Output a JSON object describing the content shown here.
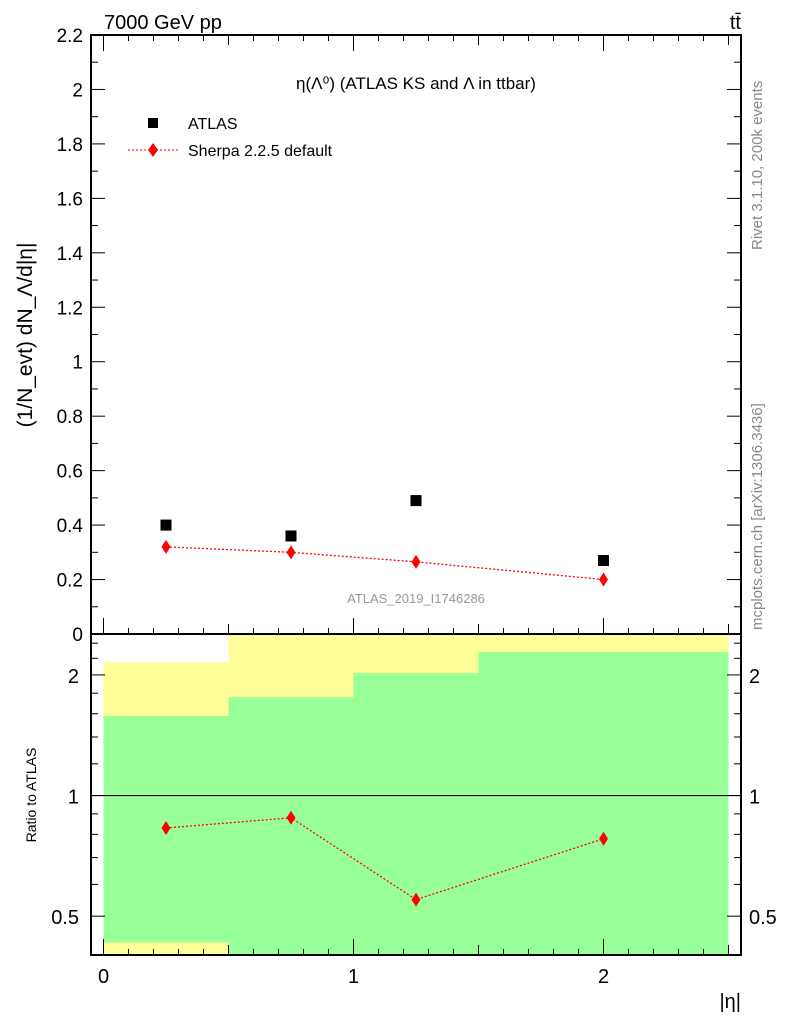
{
  "header": {
    "left": "7000 GeV pp",
    "right": "tt̄"
  },
  "side_labels": {
    "rivet": "Rivet 3.1.10,  200k events",
    "mcplots": "mcplots.cern.ch [arXiv:1306.3436]"
  },
  "chart_data": [
    {
      "type": "scatter",
      "title": "η(Λ⁰) (ATLAS KS and Λ in ttbar)",
      "ylabel": "(1/N_evt) dN_Λ/d|η|",
      "xlim": [
        -0.05,
        2.55
      ],
      "ylim": [
        0,
        2.2
      ],
      "yticks": [
        "0",
        "0.2",
        "0.4",
        "0.6",
        "0.8",
        "1",
        "1.2",
        "1.4",
        "1.6",
        "1.8",
        "2",
        "2.2"
      ],
      "legend_placement": "top-left",
      "watermark": "ATLAS_2019_I1746286",
      "series": [
        {
          "name": "ATLAS",
          "color": "#000000",
          "x": [
            0.25,
            0.75,
            1.25,
            2.0
          ],
          "y": [
            0.4,
            0.36,
            0.49,
            0.27
          ]
        },
        {
          "name": "Sherpa 2.2.5 default",
          "color": "#ff0000",
          "x": [
            0.25,
            0.75,
            1.25,
            2.0
          ],
          "y": [
            0.32,
            0.3,
            0.265,
            0.2
          ]
        }
      ]
    },
    {
      "type": "line",
      "ylabel": "Ratio to ATLAS",
      "xlabel": "|η|",
      "xlim": [
        -0.05,
        2.55
      ],
      "ylim": [
        0.4,
        2.53
      ],
      "yscale": "log",
      "yticks": [
        "0.5",
        "1",
        "2"
      ],
      "xticks": [
        "0",
        "1",
        "2"
      ],
      "bins": [
        [
          0,
          0.5
        ],
        [
          0.5,
          1.0
        ],
        [
          1.0,
          1.5
        ],
        [
          1.5,
          2.5
        ]
      ],
      "band_inner": {
        "color": "#99ff99",
        "low": [
          0.43,
          0.3,
          0.3,
          0.3
        ],
        "high": [
          1.58,
          1.76,
          2.02,
          2.28
        ]
      },
      "band_outer": {
        "color": "#ffff99",
        "low": [
          0.3,
          0.3,
          0.3,
          0.3
        ],
        "high": [
          2.15,
          3.0,
          3.0,
          3.0
        ]
      },
      "series": [
        {
          "name": "Sherpa 2.2.5 default",
          "color": "#ff0000",
          "x": [
            0.25,
            0.75,
            1.25,
            2.0
          ],
          "y": [
            0.83,
            0.88,
            0.55,
            0.78
          ]
        }
      ]
    }
  ]
}
